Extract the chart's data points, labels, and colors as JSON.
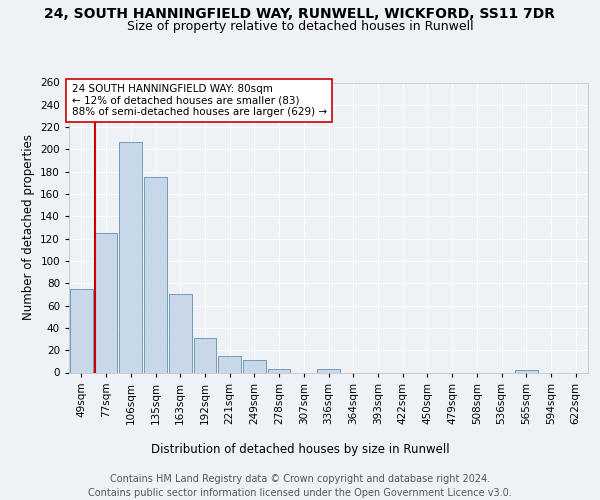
{
  "title_line1": "24, SOUTH HANNINGFIELD WAY, RUNWELL, WICKFORD, SS11 7DR",
  "title_line2": "Size of property relative to detached houses in Runwell",
  "xlabel": "Distribution of detached houses by size in Runwell",
  "ylabel": "Number of detached properties",
  "footnote1": "Contains HM Land Registry data © Crown copyright and database right 2024.",
  "footnote2": "Contains public sector information licensed under the Open Government Licence v3.0.",
  "annotation_line1": "24 SOUTH HANNINGFIELD WAY: 80sqm",
  "annotation_line2": "← 12% of detached houses are smaller (83)",
  "annotation_line3": "88% of semi-detached houses are larger (629) →",
  "bar_color": "#c8d8e8",
  "bar_edge_color": "#6090b0",
  "ref_line_color": "#cc0000",
  "categories": [
    "49sqm",
    "77sqm",
    "106sqm",
    "135sqm",
    "163sqm",
    "192sqm",
    "221sqm",
    "249sqm",
    "278sqm",
    "307sqm",
    "336sqm",
    "364sqm",
    "393sqm",
    "422sqm",
    "450sqm",
    "479sqm",
    "508sqm",
    "536sqm",
    "565sqm",
    "594sqm",
    "622sqm"
  ],
  "values": [
    75,
    125,
    207,
    175,
    70,
    31,
    15,
    11,
    3,
    0,
    3,
    0,
    0,
    0,
    0,
    0,
    0,
    0,
    2,
    0,
    0
  ],
  "ref_bar_index": 1,
  "ylim": [
    0,
    260
  ],
  "yticks": [
    0,
    20,
    40,
    60,
    80,
    100,
    120,
    140,
    160,
    180,
    200,
    220,
    240,
    260
  ],
  "background_color": "#eef2f7",
  "plot_bg_color": "#eef2f7",
  "title_fontsize": 10,
  "subtitle_fontsize": 9,
  "axis_label_fontsize": 8.5,
  "tick_fontsize": 7.5,
  "annotation_fontsize": 7.5,
  "footnote_fontsize": 7
}
